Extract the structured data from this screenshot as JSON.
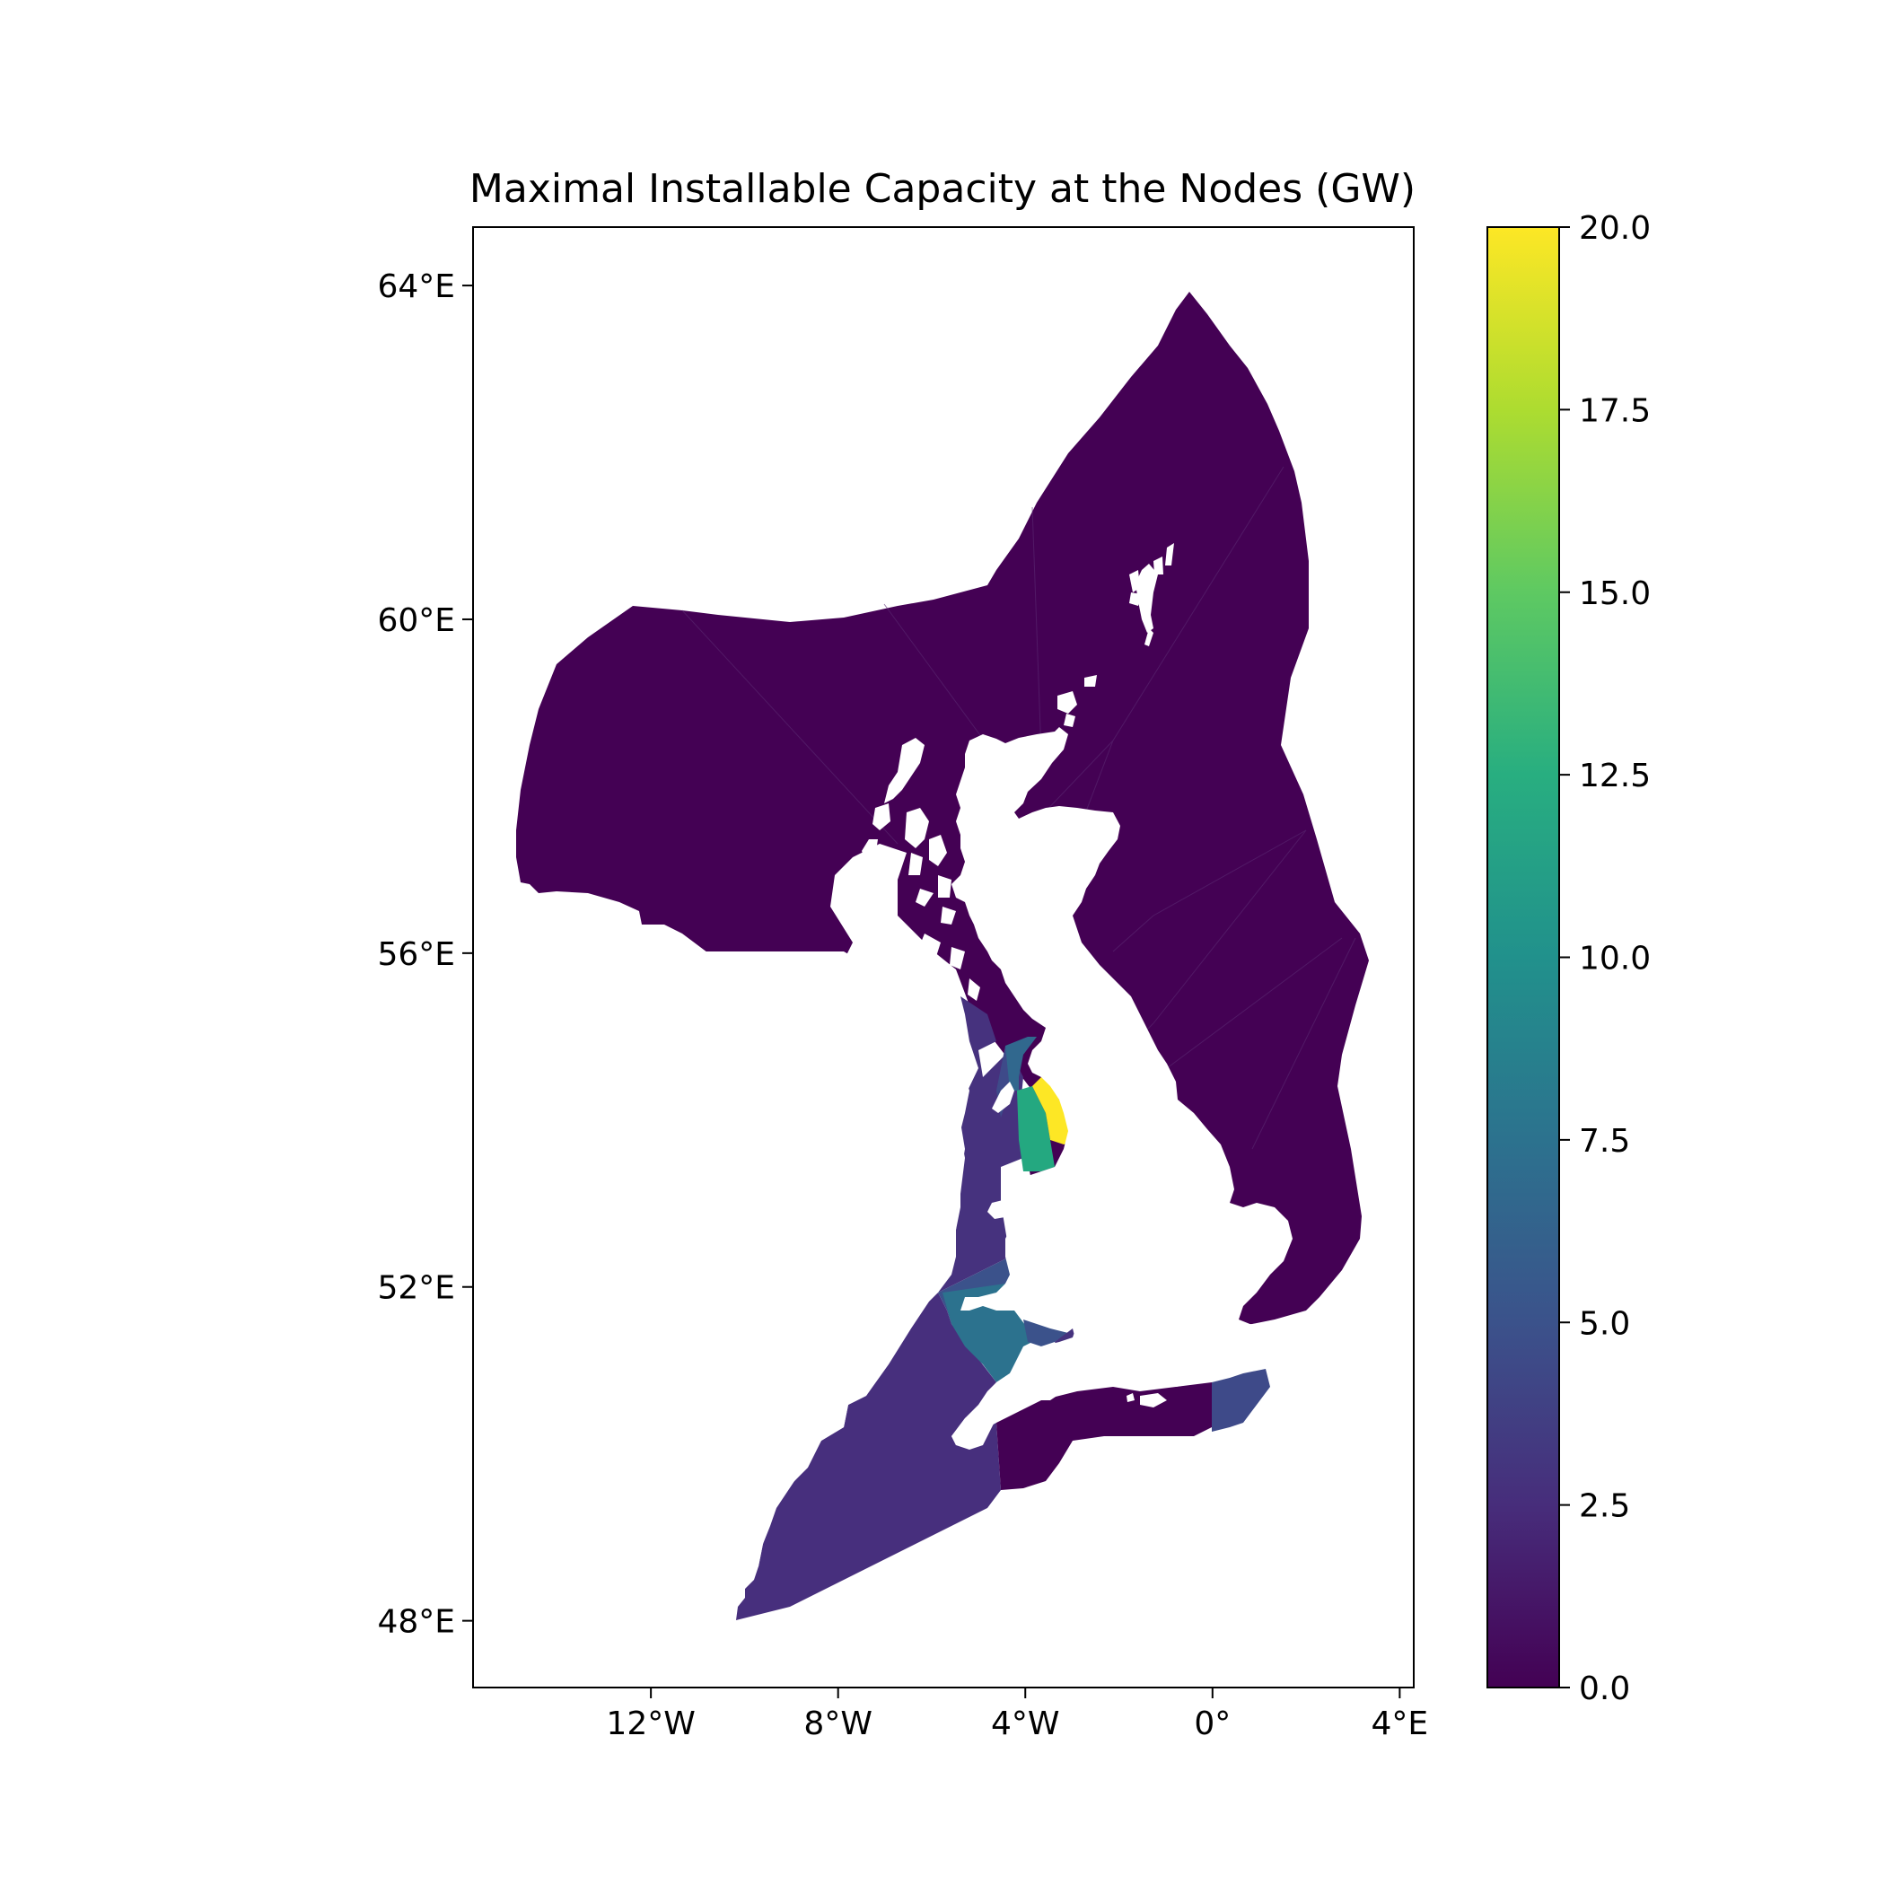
{
  "title": "Maximal Installable Capacity at the Nodes (GW)",
  "map": {
    "x_ticks": [
      {
        "lon": -12,
        "label": "12°W"
      },
      {
        "lon": -8,
        "label": "8°W"
      },
      {
        "lon": -4,
        "label": "4°W"
      },
      {
        "lon": 0,
        "label": "0°"
      },
      {
        "lon": 4,
        "label": "4°E"
      }
    ],
    "y_ticks": [
      {
        "lat": 64,
        "label": "64°E"
      },
      {
        "lat": 60,
        "label": "60°E"
      },
      {
        "lat": 56,
        "label": "56°E"
      },
      {
        "lat": 52,
        "label": "52°E"
      },
      {
        "lat": 48,
        "label": "48°E"
      }
    ],
    "lon_range": [
      -15.8,
      4.3
    ],
    "lat_range": [
      47.2,
      64.7
    ],
    "background_color": "#ffffff",
    "land_color": "#ffffff"
  },
  "colorbar": {
    "colormap": "viridis",
    "range": [
      0,
      20
    ],
    "ticks": [
      {
        "value": 0,
        "label": "0.0"
      },
      {
        "value": 2.5,
        "label": "2.5"
      },
      {
        "value": 5,
        "label": "5.0"
      },
      {
        "value": 7.5,
        "label": "7.5"
      },
      {
        "value": 10,
        "label": "10.0"
      },
      {
        "value": 12.5,
        "label": "12.5"
      },
      {
        "value": 15,
        "label": "15.0"
      },
      {
        "value": 17.5,
        "label": "17.5"
      },
      {
        "value": 20,
        "label": "20.0"
      }
    ]
  },
  "chart_data": {
    "type": "choropleth",
    "value_unit": "GW",
    "regions": [
      {
        "id": "north-sea-and-atlantic",
        "value": 0
      },
      {
        "id": "english-channel",
        "value": 0.3
      },
      {
        "id": "celtic-sea",
        "value": 2.2
      },
      {
        "id": "irish-sea-west",
        "value": 2.0
      },
      {
        "id": "bristol-channel",
        "value": 8.5
      },
      {
        "id": "cardigan-bay",
        "value": 4.3
      },
      {
        "id": "dover-strait",
        "value": 4.8
      },
      {
        "id": "solway-firth",
        "value": 6.0
      },
      {
        "id": "liverpool-bay",
        "value": 12.5
      },
      {
        "id": "morecambe-bay",
        "value": 20.0
      }
    ]
  }
}
